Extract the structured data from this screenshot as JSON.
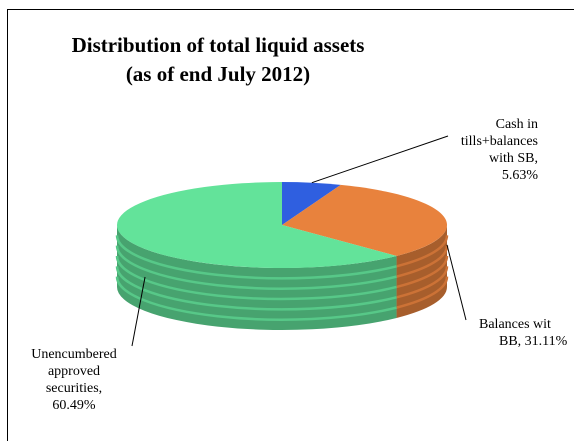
{
  "chart_data": {
    "type": "pie",
    "title": "Distribution of total liquid assets",
    "subtitle": "(as of end July 2012)",
    "slices": [
      {
        "name": "Cash in tills+balances with SB",
        "value": 5.63,
        "label_lines": [
          "Cash in",
          "tills+balances",
          "with SB,",
          "5.63%"
        ],
        "color": "#2f5fe0"
      },
      {
        "name": "Balances with BB",
        "value": 31.11,
        "label_lines": [
          "Balances wit",
          "BB, 31.11%"
        ],
        "color": "#e8823d"
      },
      {
        "name": "Unencumbered approved securities",
        "value": 60.49,
        "label_lines": [
          "Unencumbered",
          "approved",
          "securities,",
          "60.49%"
        ],
        "color": "#63e39a"
      }
    ],
    "legend": "none",
    "style": "3d"
  }
}
